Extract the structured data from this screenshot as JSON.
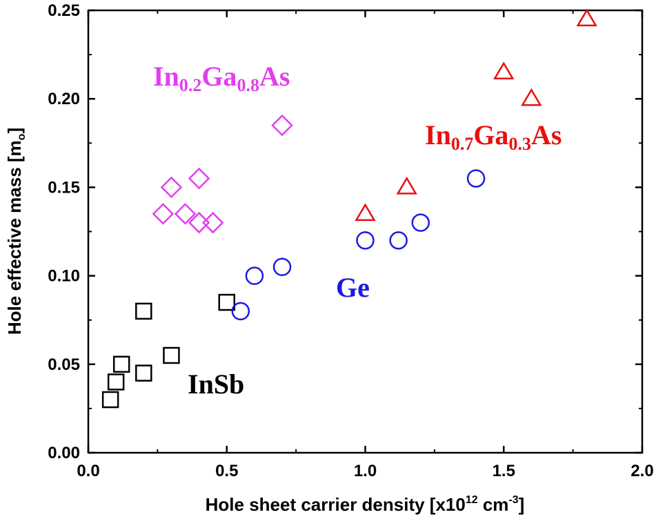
{
  "chart_data": {
    "type": "scatter",
    "title": "",
    "xlabel": {
      "text": "Hole sheet carrier density [x10",
      "superscript": "12",
      "unit": " cm",
      "unit_superscript": "-3",
      "close": "]"
    },
    "ylabel": {
      "text": "Hole effective mass [m",
      "subscript": "o",
      "close": "]"
    },
    "xlim": [
      0.0,
      2.0
    ],
    "ylim": [
      0.0,
      0.25
    ],
    "xticks": [
      "0.0",
      "0.5",
      "1.0",
      "1.5",
      "2.0"
    ],
    "yticks": [
      "0.00",
      "0.05",
      "0.10",
      "0.15",
      "0.20",
      "0.25"
    ],
    "xtick_values": [
      0.0,
      0.5,
      1.0,
      1.5,
      2.0
    ],
    "ytick_values": [
      0.0,
      0.05,
      0.1,
      0.15,
      0.2,
      0.25
    ],
    "grid": false,
    "series": [
      {
        "name": "InSb",
        "marker": "square",
        "color": "#000000",
        "points": [
          [
            0.08,
            0.03
          ],
          [
            0.1,
            0.04
          ],
          [
            0.12,
            0.05
          ],
          [
            0.2,
            0.045
          ],
          [
            0.2,
            0.08
          ],
          [
            0.3,
            0.055
          ],
          [
            0.5,
            0.085
          ]
        ],
        "label": {
          "parts": [
            {
              "t": "InSb"
            }
          ]
        }
      },
      {
        "name": "Ge",
        "marker": "circle",
        "color": "#1a1ae6",
        "points": [
          [
            0.55,
            0.08
          ],
          [
            0.6,
            0.1
          ],
          [
            0.7,
            0.105
          ],
          [
            1.0,
            0.12
          ],
          [
            1.12,
            0.12
          ],
          [
            1.2,
            0.13
          ],
          [
            1.4,
            0.155
          ]
        ],
        "label": {
          "parts": [
            {
              "t": "Ge"
            }
          ]
        }
      },
      {
        "name": "In0.2Ga0.8As",
        "marker": "diamond",
        "color": "#e040ee",
        "points": [
          [
            0.27,
            0.135
          ],
          [
            0.3,
            0.15
          ],
          [
            0.35,
            0.135
          ],
          [
            0.4,
            0.13
          ],
          [
            0.4,
            0.155
          ],
          [
            0.45,
            0.13
          ],
          [
            0.7,
            0.185
          ]
        ],
        "label": {
          "parts": [
            {
              "t": "In"
            },
            {
              "t": "0.2",
              "sub": true
            },
            {
              "t": "Ga"
            },
            {
              "t": "0.8",
              "sub": true
            },
            {
              "t": "As"
            }
          ]
        }
      },
      {
        "name": "In0.7Ga0.3As",
        "marker": "triangle",
        "color": "#e81010",
        "points": [
          [
            1.0,
            0.135
          ],
          [
            1.15,
            0.15
          ],
          [
            1.5,
            0.215
          ],
          [
            1.6,
            0.2
          ],
          [
            1.8,
            0.245
          ]
        ],
        "label": {
          "parts": [
            {
              "t": "In"
            },
            {
              "t": "0.7",
              "sub": true
            },
            {
              "t": "Ga"
            },
            {
              "t": "0.3",
              "sub": true
            },
            {
              "t": "As"
            }
          ]
        }
      }
    ]
  }
}
